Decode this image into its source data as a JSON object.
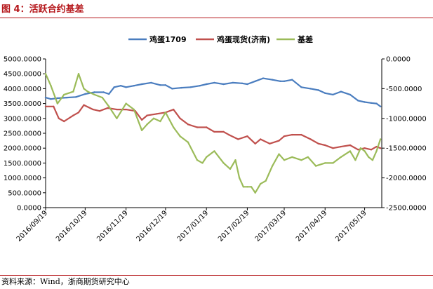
{
  "figure": {
    "title": "图 4：活跃合约基差",
    "source": "资料来源：Wind，浙商期货研究中心"
  },
  "chart_data": {
    "type": "line",
    "title": "",
    "xlabel": "",
    "ylabel": "",
    "ylabel_right": "",
    "xlim": [
      "2016-09-19",
      "2017-06-01"
    ],
    "ylim_left": [
      0,
      5000
    ],
    "ylim_right": [
      -2500,
      0
    ],
    "grid": false,
    "legend_position": "top-center",
    "x_ticks": [
      "2016/09/19",
      "2016/10/19",
      "2016/11/19",
      "2016/12/19",
      "2017/01/19",
      "2017/02/19",
      "2017/03/19",
      "2017/04/19",
      "2017/05/19"
    ],
    "y_left_ticks": [
      "0.0000",
      "500.0000",
      "1000.0000",
      "1500.0000",
      "2000.0000",
      "2500.0000",
      "3000.0000",
      "3500.0000",
      "4000.0000",
      "4500.0000",
      "5000.0000"
    ],
    "y_right_ticks": [
      "-2500.0000",
      "-2000.0000",
      "-1500.0000",
      "-1000.0000",
      "-500.0000",
      "0.0000"
    ],
    "series": [
      {
        "name": "鸡蛋1709",
        "axis": "left",
        "color": "#4a7dbf",
        "x": [
          "2016-09-19",
          "2016-09-23",
          "2016-09-28",
          "2016-10-05",
          "2016-10-12",
          "2016-10-19",
          "2016-10-26",
          "2016-11-02",
          "2016-11-06",
          "2016-11-10",
          "2016-11-15",
          "2016-11-19",
          "2016-11-25",
          "2016-12-01",
          "2016-12-08",
          "2016-12-15",
          "2016-12-19",
          "2016-12-24",
          "2016-12-31",
          "2017-01-07",
          "2017-01-14",
          "2017-01-19",
          "2017-01-25",
          "2017-02-01",
          "2017-02-08",
          "2017-02-15",
          "2017-02-19",
          "2017-02-25",
          "2017-03-03",
          "2017-03-10",
          "2017-03-16",
          "2017-03-19",
          "2017-03-25",
          "2017-04-01",
          "2017-04-08",
          "2017-04-14",
          "2017-04-19",
          "2017-04-25",
          "2017-05-01",
          "2017-05-08",
          "2017-05-14",
          "2017-05-19",
          "2017-05-24",
          "2017-05-28",
          "2017-05-31"
        ],
        "y": [
          3700,
          3650,
          3680,
          3700,
          3720,
          3820,
          3880,
          3880,
          3820,
          4050,
          4100,
          4050,
          4100,
          4150,
          4200,
          4120,
          4120,
          4000,
          4030,
          4050,
          4100,
          4150,
          4200,
          4150,
          4200,
          4180,
          4150,
          4250,
          4350,
          4300,
          4250,
          4250,
          4300,
          4050,
          4000,
          3950,
          3850,
          3800,
          3900,
          3800,
          3600,
          3550,
          3520,
          3500,
          3400
        ]
      },
      {
        "name": "鸡蛋现货(济南)",
        "axis": "left",
        "color": "#c0504d",
        "x": [
          "2016-09-19",
          "2016-09-25",
          "2016-09-29",
          "2016-10-03",
          "2016-10-10",
          "2016-10-14",
          "2016-10-18",
          "2016-10-25",
          "2016-10-30",
          "2016-11-05",
          "2016-11-12",
          "2016-11-19",
          "2016-11-26",
          "2016-12-01",
          "2016-12-05",
          "2016-12-12",
          "2016-12-19",
          "2016-12-25",
          "2016-12-30",
          "2017-01-05",
          "2017-01-12",
          "2017-01-19",
          "2017-01-25",
          "2017-02-01",
          "2017-02-05",
          "2017-02-12",
          "2017-02-19",
          "2017-02-25",
          "2017-03-01",
          "2017-03-08",
          "2017-03-15",
          "2017-03-19",
          "2017-03-25",
          "2017-04-01",
          "2017-04-08",
          "2017-04-14",
          "2017-04-19",
          "2017-04-25",
          "2017-05-01",
          "2017-05-08",
          "2017-05-14",
          "2017-05-19",
          "2017-05-24",
          "2017-05-28",
          "2017-05-31"
        ],
        "y": [
          3400,
          3400,
          3000,
          2900,
          3100,
          3200,
          3450,
          3300,
          3250,
          3350,
          3300,
          3300,
          3250,
          2950,
          3100,
          3150,
          3200,
          3300,
          3000,
          2800,
          2700,
          2700,
          2550,
          2550,
          2450,
          2300,
          2400,
          2150,
          2300,
          2150,
          2250,
          2400,
          2450,
          2450,
          2300,
          2150,
          2100,
          2000,
          2050,
          2100,
          1950,
          2000,
          1950,
          2050,
          2000
        ]
      },
      {
        "name": "基差",
        "axis": "right",
        "color": "#9bbb59",
        "x": [
          "2016-09-19",
          "2016-09-23",
          "2016-09-28",
          "2016-10-03",
          "2016-10-10",
          "2016-10-14",
          "2016-10-18",
          "2016-10-21",
          "2016-10-26",
          "2016-11-01",
          "2016-11-06",
          "2016-11-12",
          "2016-11-19",
          "2016-11-25",
          "2016-12-01",
          "2016-12-05",
          "2016-12-10",
          "2016-12-15",
          "2016-12-19",
          "2016-12-25",
          "2016-12-30",
          "2017-01-05",
          "2017-01-12",
          "2017-01-16",
          "2017-01-19",
          "2017-01-25",
          "2017-02-01",
          "2017-02-06",
          "2017-02-10",
          "2017-02-13",
          "2017-02-16",
          "2017-02-19",
          "2017-02-22",
          "2017-02-25",
          "2017-03-01",
          "2017-03-05",
          "2017-03-10",
          "2017-03-15",
          "2017-03-19",
          "2017-03-25",
          "2017-04-01",
          "2017-04-06",
          "2017-04-12",
          "2017-04-19",
          "2017-04-25",
          "2017-05-01",
          "2017-05-08",
          "2017-05-12",
          "2017-05-16",
          "2017-05-19",
          "2017-05-22",
          "2017-05-25",
          "2017-05-28",
          "2017-05-31"
        ],
        "y": [
          -250,
          -450,
          -750,
          -600,
          -550,
          -250,
          -500,
          -550,
          -600,
          -650,
          -800,
          -1000,
          -750,
          -850,
          -1200,
          -1100,
          -1000,
          -1050,
          -900,
          -1150,
          -1300,
          -1400,
          -1700,
          -1750,
          -1650,
          -1550,
          -1750,
          -1850,
          -1700,
          -2000,
          -2150,
          -2150,
          -2150,
          -2250,
          -2100,
          -2050,
          -1800,
          -1600,
          -1700,
          -1650,
          -1700,
          -1650,
          -1800,
          -1750,
          -1750,
          -1650,
          -1550,
          -1700,
          -1500,
          -1550,
          -1650,
          -1700,
          -1550,
          -1350
        ]
      }
    ]
  }
}
